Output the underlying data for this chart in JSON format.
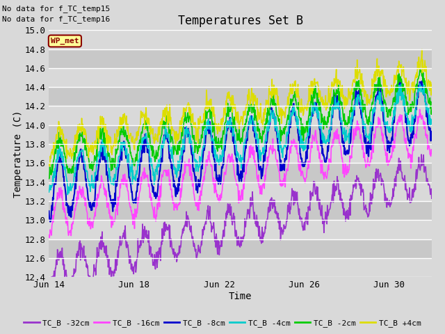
{
  "title": "Temperatures Set B",
  "xlabel": "Time",
  "ylabel": "Temperature (C)",
  "text_no_data_line1": "No data for f_TC_temp15",
  "text_no_data_line2": "No data for f_TC_temp16",
  "wp_met_label": "WP_met",
  "xlim_days": [
    0,
    18
  ],
  "ylim": [
    12.4,
    15.0
  ],
  "yticks": [
    12.4,
    12.6,
    12.8,
    13.0,
    13.2,
    13.4,
    13.6,
    13.8,
    14.0,
    14.2,
    14.4,
    14.6,
    14.8,
    15.0
  ],
  "xtick_labels": [
    "Jun 14",
    "Jun 18",
    "Jun 22",
    "Jun 26",
    "Jun 30"
  ],
  "xtick_positions": [
    0,
    4,
    8,
    12,
    16
  ],
  "series": [
    {
      "name": "TC_B -32cm",
      "color": "#9932CC",
      "base_start": 12.45,
      "base_end": 13.45,
      "amplitude": 0.18,
      "period": 1.0,
      "noise": 0.05,
      "lw": 1.2
    },
    {
      "name": "TC_B -16cm",
      "color": "#FF44FF",
      "base_start": 13.05,
      "base_end": 13.92,
      "amplitude": 0.22,
      "period": 1.0,
      "noise": 0.04,
      "lw": 1.2
    },
    {
      "name": "TC_B -8cm",
      "color": "#0000CD",
      "base_start": 13.32,
      "base_end": 14.18,
      "amplitude": 0.3,
      "period": 1.0,
      "noise": 0.04,
      "lw": 1.5
    },
    {
      "name": "TC_B -4cm",
      "color": "#00CCCC",
      "base_start": 13.48,
      "base_end": 14.22,
      "amplitude": 0.2,
      "period": 1.0,
      "noise": 0.04,
      "lw": 1.2
    },
    {
      "name": "TC_B -2cm",
      "color": "#00CC00",
      "base_start": 13.65,
      "base_end": 14.38,
      "amplitude": 0.18,
      "period": 1.0,
      "noise": 0.04,
      "lw": 1.2
    },
    {
      "name": "TC_B +4cm",
      "color": "#DDDD00",
      "base_start": 13.78,
      "base_end": 14.55,
      "amplitude": 0.14,
      "period": 1.0,
      "noise": 0.05,
      "lw": 1.2
    }
  ],
  "bg_color": "#D9D9D9",
  "plot_bg_color": "#D9D9D9",
  "band_colors": [
    "#D9D9D9",
    "#C8C8C8"
  ],
  "grid_color": "#FFFFFF",
  "n_points": 900,
  "seed": 42
}
